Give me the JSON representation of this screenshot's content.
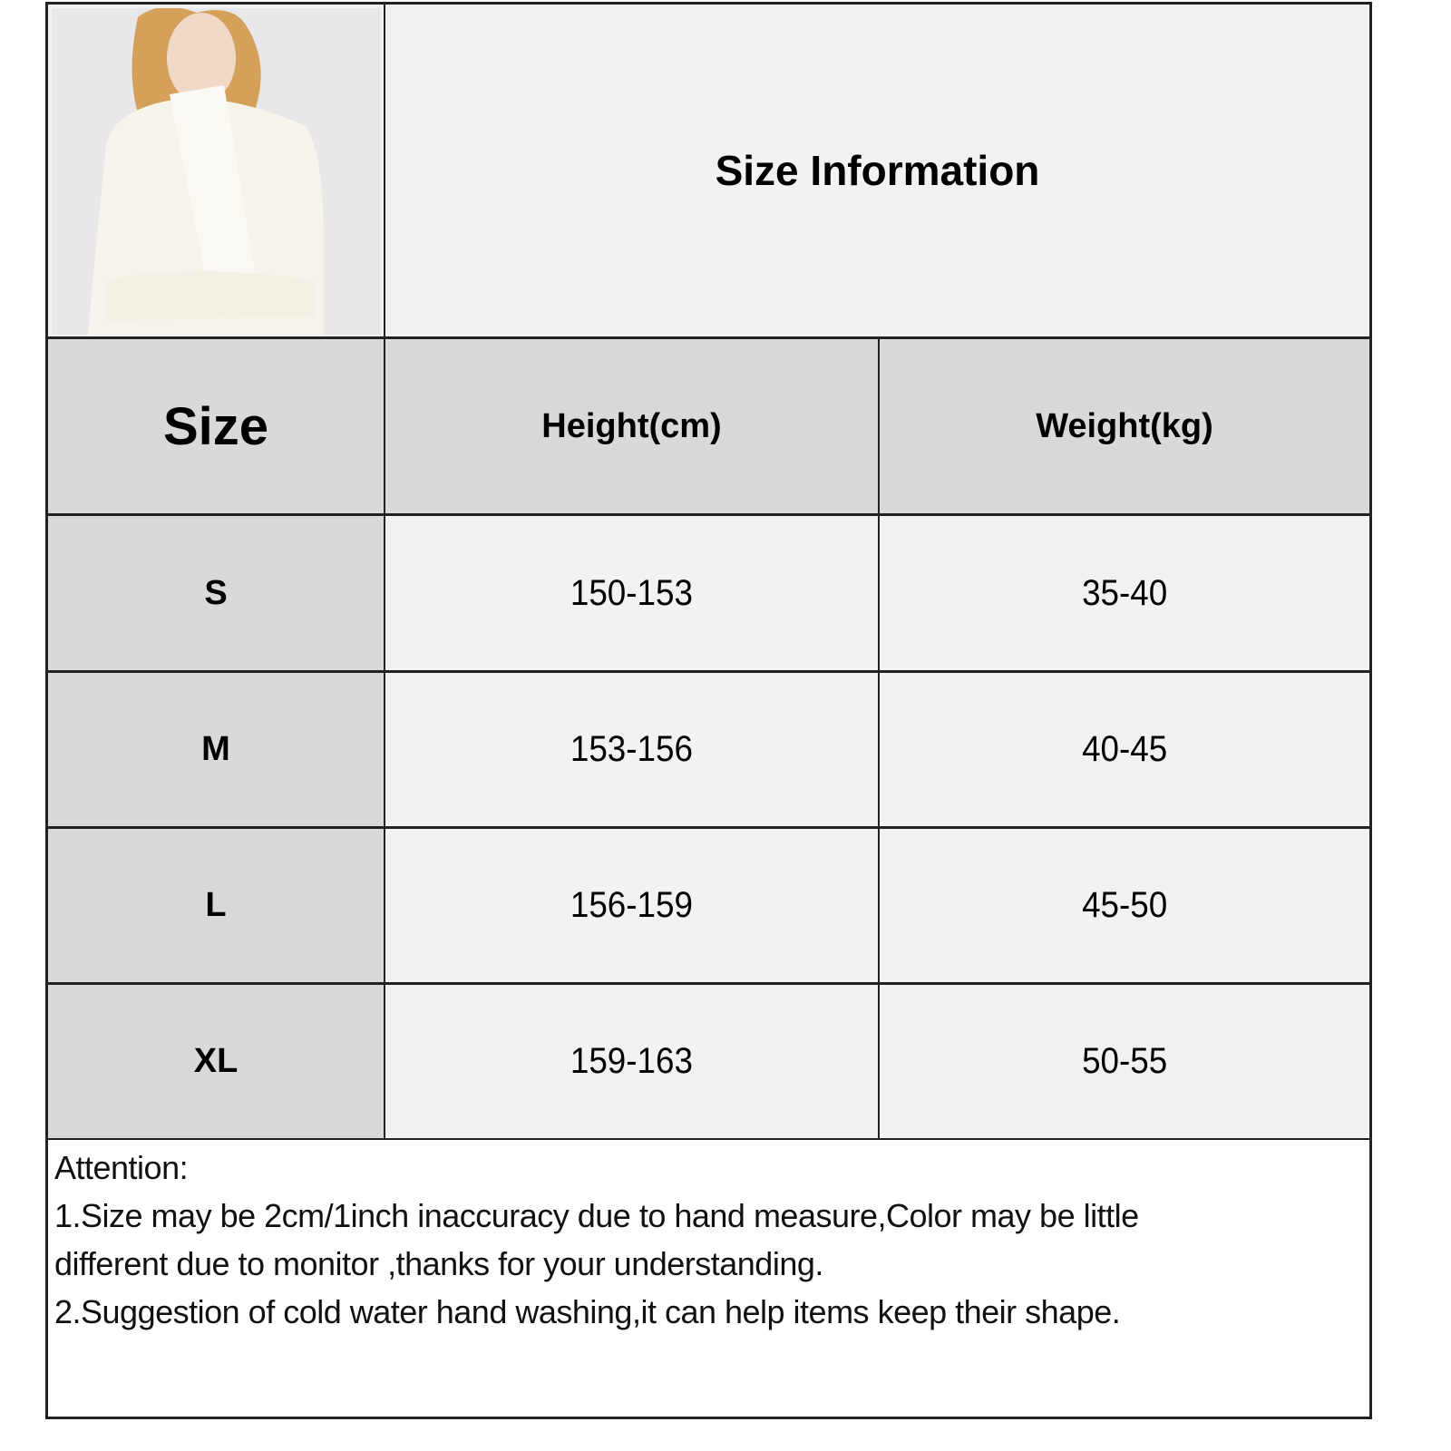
{
  "title": "Size Information",
  "photo": {
    "alt": "model wearing white turtleneck sweater"
  },
  "table": {
    "headers": [
      "Size",
      "Height(cm)",
      "Weight(kg)"
    ],
    "rows": [
      {
        "size": "S",
        "height": "150-153",
        "weight": "35-40"
      },
      {
        "size": "M",
        "height": "153-156",
        "weight": "40-45"
      },
      {
        "size": "L",
        "height": "156-159",
        "weight": "45-50"
      },
      {
        "size": "XL",
        "height": "159-163",
        "weight": "50-55"
      }
    ]
  },
  "attention": {
    "heading": "Attention:",
    "line1a": "1.Size may be 2cm/1inch inaccuracy due to hand measure,Color may be little",
    "line1b": "different due to monitor ,thanks for your understanding.",
    "line2": "2.Suggestion of cold water hand washing,it can help items keep their shape."
  },
  "colors": {
    "header_gray": "#d9d9d9",
    "cell_light": "#f2f2f2",
    "border": "#222222",
    "corner_marker": "#1a8a1a"
  }
}
